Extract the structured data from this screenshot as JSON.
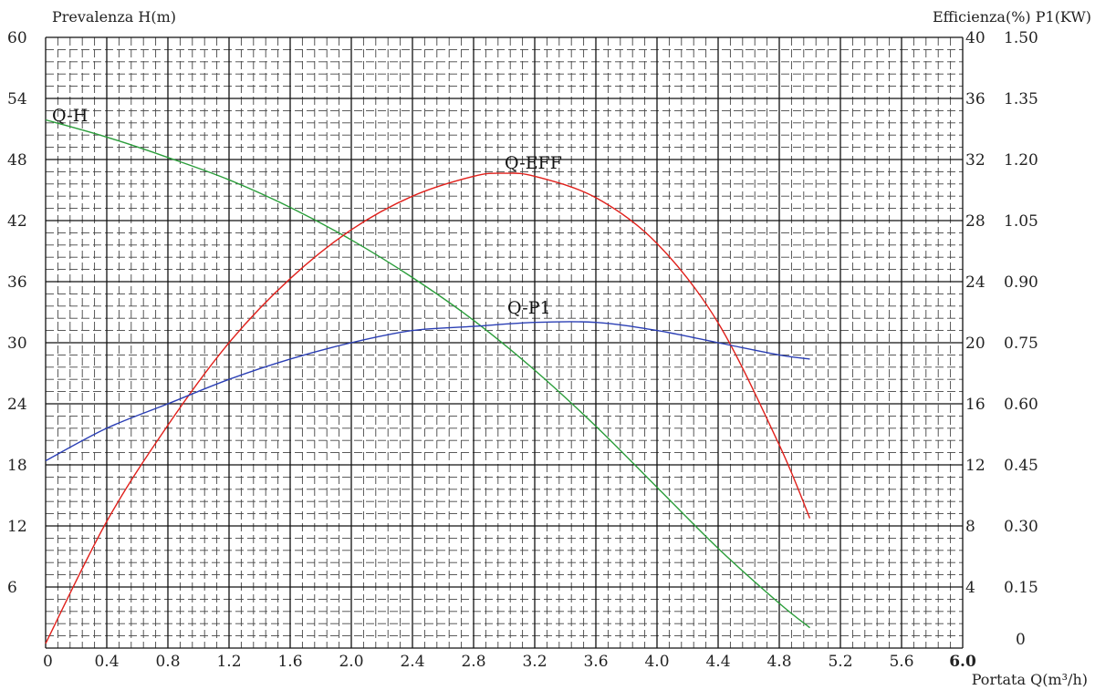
{
  "chart_data": {
    "type": "line",
    "title": "",
    "xlabel": "Portata Q(m³/h)",
    "ylabel_left": "Prevalenza H(m)",
    "ylabel_right": "Efficienza(%) P1(KW)",
    "xlim": [
      0,
      6.0
    ],
    "ylim_left": [
      0,
      60
    ],
    "ylim_eff": [
      0,
      40
    ],
    "ylim_p1": [
      0,
      1.5
    ],
    "grid": true,
    "x_ticks": [
      "0",
      "0.4",
      "0.8",
      "1.2",
      "1.6",
      "2.0",
      "2.4",
      "2.8",
      "3.2",
      "3.6",
      "4.0",
      "4.4",
      "4.8",
      "5.2",
      "5.6",
      "6.0"
    ],
    "y_left_ticks": [
      "6",
      "12",
      "18",
      "24",
      "30",
      "36",
      "42",
      "48",
      "54",
      "60"
    ],
    "y_eff_ticks": [
      "4",
      "8",
      "12",
      "16",
      "20",
      "24",
      "28",
      "32",
      "36",
      "40"
    ],
    "y_p1_ticks": [
      "0",
      "0.15",
      "0.30",
      "0.45",
      "0.60",
      "0.75",
      "0.90",
      "1.05",
      "1.20",
      "1.35",
      "1.50"
    ],
    "series": [
      {
        "name": "Q-H",
        "axis": "H",
        "color": "#2a9d3a",
        "x": [
          0,
          0.4,
          0.8,
          1.2,
          1.6,
          2.0,
          2.4,
          2.8,
          3.2,
          3.6,
          4.0,
          4.4,
          4.8,
          5.0
        ],
        "values": [
          51.9,
          50.2,
          48.2,
          46.0,
          43.3,
          40.1,
          36.4,
          32.2,
          27.3,
          21.8,
          15.8,
          9.8,
          4.4,
          2.0
        ]
      },
      {
        "name": "Q-EFF",
        "axis": "EFF",
        "color": "#e0201b",
        "x": [
          0,
          0.4,
          0.8,
          1.2,
          1.6,
          2.0,
          2.4,
          2.8,
          3.0,
          3.2,
          3.6,
          4.0,
          4.4,
          4.8,
          5.0
        ],
        "values": [
          0.3,
          8.3,
          14.6,
          20.0,
          24.2,
          27.4,
          29.6,
          30.9,
          31.1,
          30.9,
          29.5,
          26.5,
          21.3,
          13.3,
          8.5
        ]
      },
      {
        "name": "Q-P1",
        "axis": "P1",
        "color": "#2b3fb5",
        "x": [
          0,
          0.4,
          0.8,
          1.2,
          1.6,
          2.0,
          2.4,
          2.8,
          3.2,
          3.6,
          4.0,
          4.4,
          4.8,
          5.0
        ],
        "values": [
          0.46,
          0.54,
          0.6,
          0.66,
          0.71,
          0.75,
          0.78,
          0.79,
          0.8,
          0.8,
          0.78,
          0.75,
          0.72,
          0.71
        ]
      }
    ]
  }
}
